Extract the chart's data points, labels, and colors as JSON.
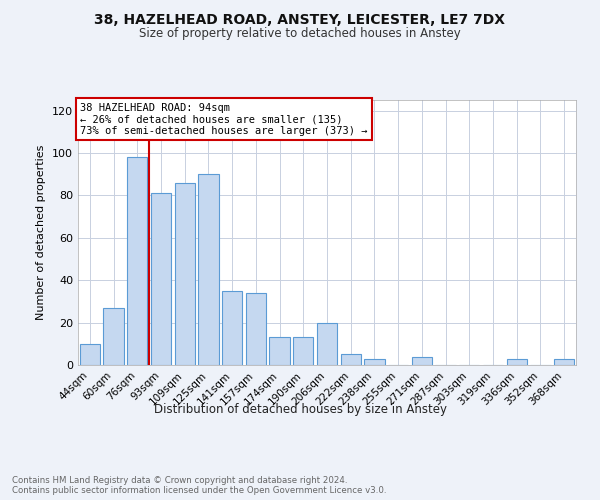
{
  "title1": "38, HAZELHEAD ROAD, ANSTEY, LEICESTER, LE7 7DX",
  "title2": "Size of property relative to detached houses in Anstey",
  "xlabel": "Distribution of detached houses by size in Anstey",
  "ylabel": "Number of detached properties",
  "footnote": "Contains HM Land Registry data © Crown copyright and database right 2024.\nContains public sector information licensed under the Open Government Licence v3.0.",
  "categories": [
    "44sqm",
    "60sqm",
    "76sqm",
    "93sqm",
    "109sqm",
    "125sqm",
    "141sqm",
    "157sqm",
    "174sqm",
    "190sqm",
    "206sqm",
    "222sqm",
    "238sqm",
    "255sqm",
    "271sqm",
    "287sqm",
    "303sqm",
    "319sqm",
    "336sqm",
    "352sqm",
    "368sqm"
  ],
  "values": [
    10,
    27,
    98,
    81,
    86,
    90,
    35,
    34,
    13,
    13,
    20,
    5,
    3,
    0,
    4,
    0,
    0,
    0,
    3,
    0,
    3
  ],
  "bar_color": "#c5d8f0",
  "bar_edge_color": "#5b9bd5",
  "property_line_color": "#cc0000",
  "annotation_title": "38 HAZELHEAD ROAD: 94sqm",
  "annotation_line1": "← 26% of detached houses are smaller (135)",
  "annotation_line2": "73% of semi-detached houses are larger (373) →",
  "annotation_box_color": "#cc0000",
  "ylim": [
    0,
    125
  ],
  "yticks": [
    0,
    20,
    40,
    60,
    80,
    100,
    120
  ],
  "background_color": "#eef2f9",
  "plot_bg_color": "#ffffff"
}
